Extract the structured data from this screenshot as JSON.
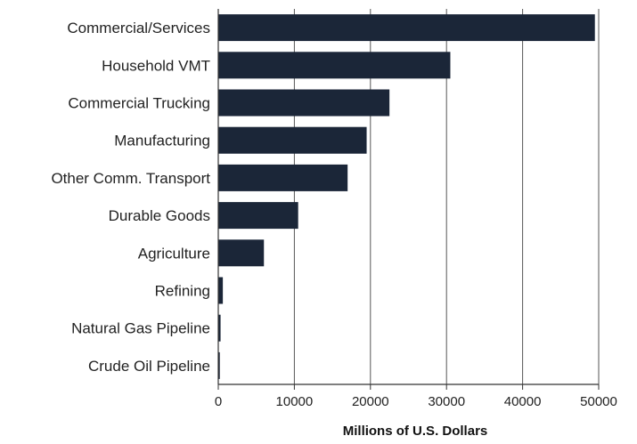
{
  "chart_data": {
    "type": "bar",
    "orientation": "horizontal",
    "categories": [
      "Commercial/Services",
      "Household VMT",
      "Commercial Trucking",
      "Manufacturing",
      "Other Comm. Transport",
      "Durable Goods",
      "Agriculture",
      "Refining",
      "Natural Gas Pipeline",
      "Crude Oil Pipeline"
    ],
    "values": [
      49500,
      30500,
      22500,
      19500,
      17000,
      10500,
      6000,
      600,
      300,
      200
    ],
    "xlabel": "Millions of U.S. Dollars",
    "ylabel": "",
    "title": "",
    "xlim": [
      0,
      50000
    ],
    "xticks": [
      0,
      10000,
      20000,
      30000,
      40000,
      50000
    ],
    "xtick_labels": [
      "0",
      "10000",
      "20000",
      "30000",
      "40000",
      "50000"
    ],
    "grid": "vertical",
    "bar_color": "#1b2638",
    "grid_color": "#555555",
    "axis_color": "#333333"
  }
}
